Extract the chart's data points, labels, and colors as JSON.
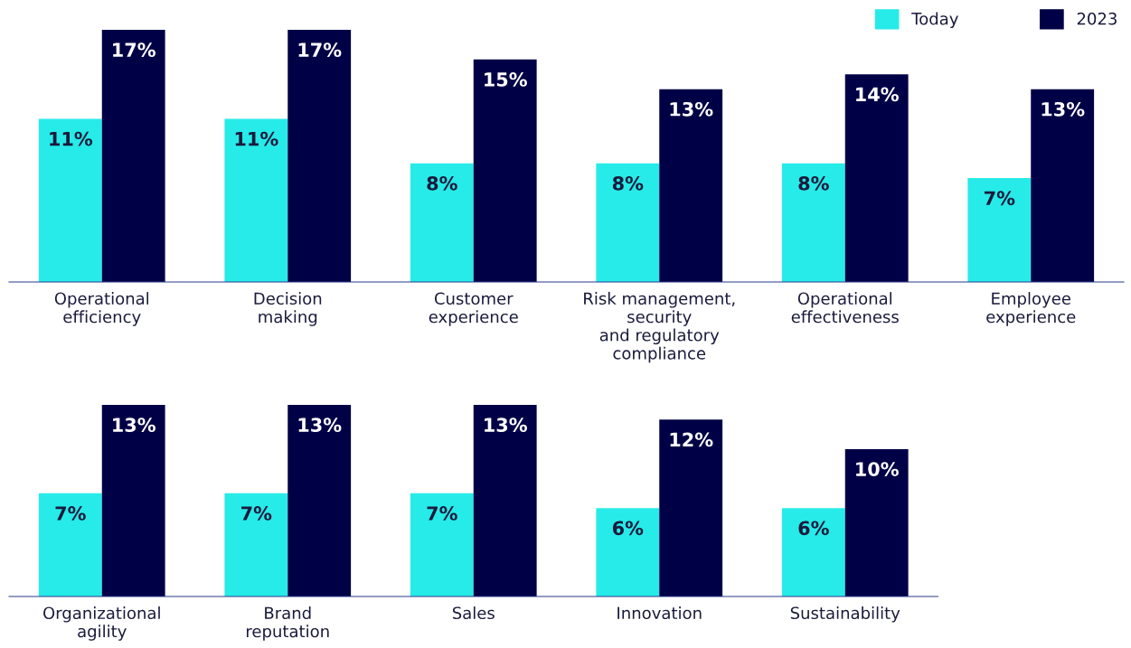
{
  "chart_data": [
    {
      "type": "bar",
      "categories": [
        "Operational\nefficiency",
        "Decision\nmaking",
        "Customer\nexperience",
        "Risk management,\nsecurity\nand regulatory\ncompliance",
        "Operational\neffectiveness",
        "Employee\nexperience"
      ],
      "series": [
        {
          "name": "Today",
          "color": "#27ebe8",
          "values": [
            11,
            11,
            8,
            8,
            8,
            7
          ],
          "value_labels": [
            "11%",
            "11%",
            "8%",
            "8%",
            "8%",
            "7%"
          ]
        },
        {
          "name": "2023",
          "color": "#000046",
          "values": [
            17,
            17,
            15,
            13,
            14,
            13
          ],
          "value_labels": [
            "17%",
            "17%",
            "15%",
            "13%",
            "14%",
            "13%"
          ]
        }
      ],
      "legend": "top right",
      "grid": false
    },
    {
      "type": "bar",
      "categories": [
        "Organizational\nagility",
        "Brand\nreputation",
        "Sales",
        "Innovation",
        "Sustainability"
      ],
      "series": [
        {
          "color": "#27ebe8",
          "values": [
            7,
            7,
            7,
            6,
            6
          ],
          "value_labels": [
            "7%",
            "7%",
            "7%",
            "6%",
            "6%"
          ]
        },
        {
          "color": "#000046",
          "values": [
            13,
            13,
            13,
            12,
            10
          ],
          "value_labels": [
            "13%",
            "13%",
            "13%",
            "12%",
            "10%"
          ]
        }
      ],
      "legend": false,
      "grid": false
    }
  ]
}
